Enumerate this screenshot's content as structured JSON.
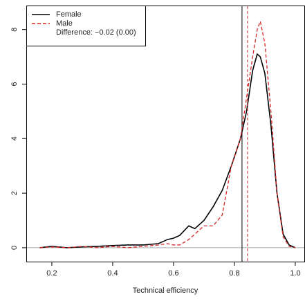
{
  "chart_data": {
    "type": "line",
    "x_label": "Technical efficiency",
    "annotation": "Difference: −0.02 (0.00)",
    "x": [
      0.16,
      0.2,
      0.25,
      0.3,
      0.35,
      0.4,
      0.45,
      0.5,
      0.55,
      0.58,
      0.6,
      0.62,
      0.65,
      0.67,
      0.7,
      0.73,
      0.76,
      0.79,
      0.82,
      0.84,
      0.86,
      0.875,
      0.885,
      0.9,
      0.92,
      0.94,
      0.96,
      0.98,
      1.0
    ],
    "series": [
      {
        "name": "Female",
        "color": "#000000",
        "dash": false,
        "mean": 0.825,
        "values": [
          0,
          0.05,
          0.0,
          0.03,
          0.05,
          0.08,
          0.1,
          0.1,
          0.15,
          0.3,
          0.35,
          0.45,
          0.8,
          0.7,
          1.0,
          1.5,
          2.1,
          3.0,
          4.0,
          5.0,
          6.5,
          7.1,
          7.0,
          6.4,
          4.5,
          2.0,
          0.5,
          0.1,
          0
        ]
      },
      {
        "name": "Male",
        "color": "#d62728",
        "dash": true,
        "mean": 0.843,
        "values": [
          0,
          0.03,
          0.0,
          0.05,
          0.0,
          0.05,
          0.0,
          0.05,
          0.1,
          0.15,
          0.1,
          0.1,
          0.3,
          0.5,
          0.8,
          0.8,
          1.2,
          3.0,
          4.0,
          5.5,
          7.0,
          8.0,
          8.3,
          7.5,
          5.0,
          2.0,
          0.4,
          0.05,
          0
        ]
      }
    ],
    "hline": 0,
    "xlim": [
      0.116,
      1.032
    ],
    "ylim": [
      -0.51,
      8.88
    ],
    "xticks": [
      0.2,
      0.4,
      0.6,
      0.8,
      {
        "value": 1.0,
        "label": "1.0"
      }
    ],
    "yticks": [
      0,
      2,
      4,
      6,
      8
    ],
    "legend": "top-left"
  }
}
